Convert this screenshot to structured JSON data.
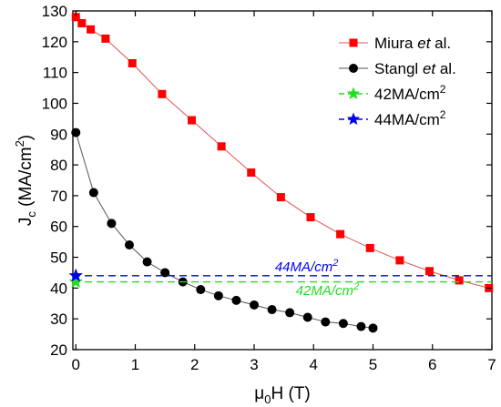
{
  "chart_data": {
    "type": "line",
    "xlabel_main": "μ",
    "xlabel_sub": "0",
    "xlabel_rest": "H (T)",
    "ylabel_main": "J",
    "ylabel_sub": "c",
    "ylabel_unit": " (MA/cm",
    "ylabel_sup": "2",
    "ylabel_close": ")",
    "xlim": [
      -0.05,
      7
    ],
    "ylim": [
      20,
      130
    ],
    "xticks": [
      0,
      1,
      2,
      3,
      4,
      5,
      6,
      7
    ],
    "yticks": [
      20,
      30,
      40,
      50,
      60,
      70,
      80,
      90,
      100,
      110,
      120,
      130
    ],
    "grid": false,
    "legend_position": "top-right",
    "series": [
      {
        "name_parts": [
          "Miura ",
          "et",
          " al."
        ],
        "color": "#ff0000",
        "line_color": "#e05050",
        "marker": "square",
        "x": [
          0,
          0.1,
          0.25,
          0.5,
          0.95,
          1.45,
          1.95,
          2.45,
          2.95,
          3.45,
          3.95,
          4.45,
          4.95,
          5.45,
          5.95,
          6.45,
          6.95
        ],
        "y": [
          128,
          126,
          124,
          121,
          113,
          103,
          94.5,
          86,
          77.5,
          69.5,
          63,
          57.5,
          53,
          49,
          45.5,
          42.5,
          40
        ]
      },
      {
        "name_parts": [
          "Stangl ",
          "et",
          " al."
        ],
        "color": "#000000",
        "line_color": "#555555",
        "marker": "circle",
        "x": [
          0,
          0.3,
          0.6,
          0.9,
          1.2,
          1.5,
          1.8,
          2.1,
          2.4,
          2.7,
          3.0,
          3.3,
          3.6,
          3.9,
          4.2,
          4.5,
          4.8,
          5.0
        ],
        "y": [
          90.5,
          71,
          61,
          54,
          48.5,
          45,
          42,
          39.5,
          37.5,
          36,
          34.5,
          33,
          32,
          30.5,
          29,
          28.5,
          27.5,
          27
        ]
      }
    ],
    "reference_lines": [
      {
        "name_main": "42MA/cm",
        "name_sup": "2",
        "value": 42,
        "color": "#22dd22",
        "label_main": "42MA/cm",
        "label_sup": "2",
        "label_x": 3.7,
        "label_y": 37.8
      },
      {
        "name_main": "44MA/cm",
        "name_sup": "2",
        "value": 44,
        "color": "#0000ee",
        "label_main": "44MA/cm",
        "label_sup": "2",
        "label_x": 3.35,
        "label_y": 45.5
      }
    ]
  }
}
